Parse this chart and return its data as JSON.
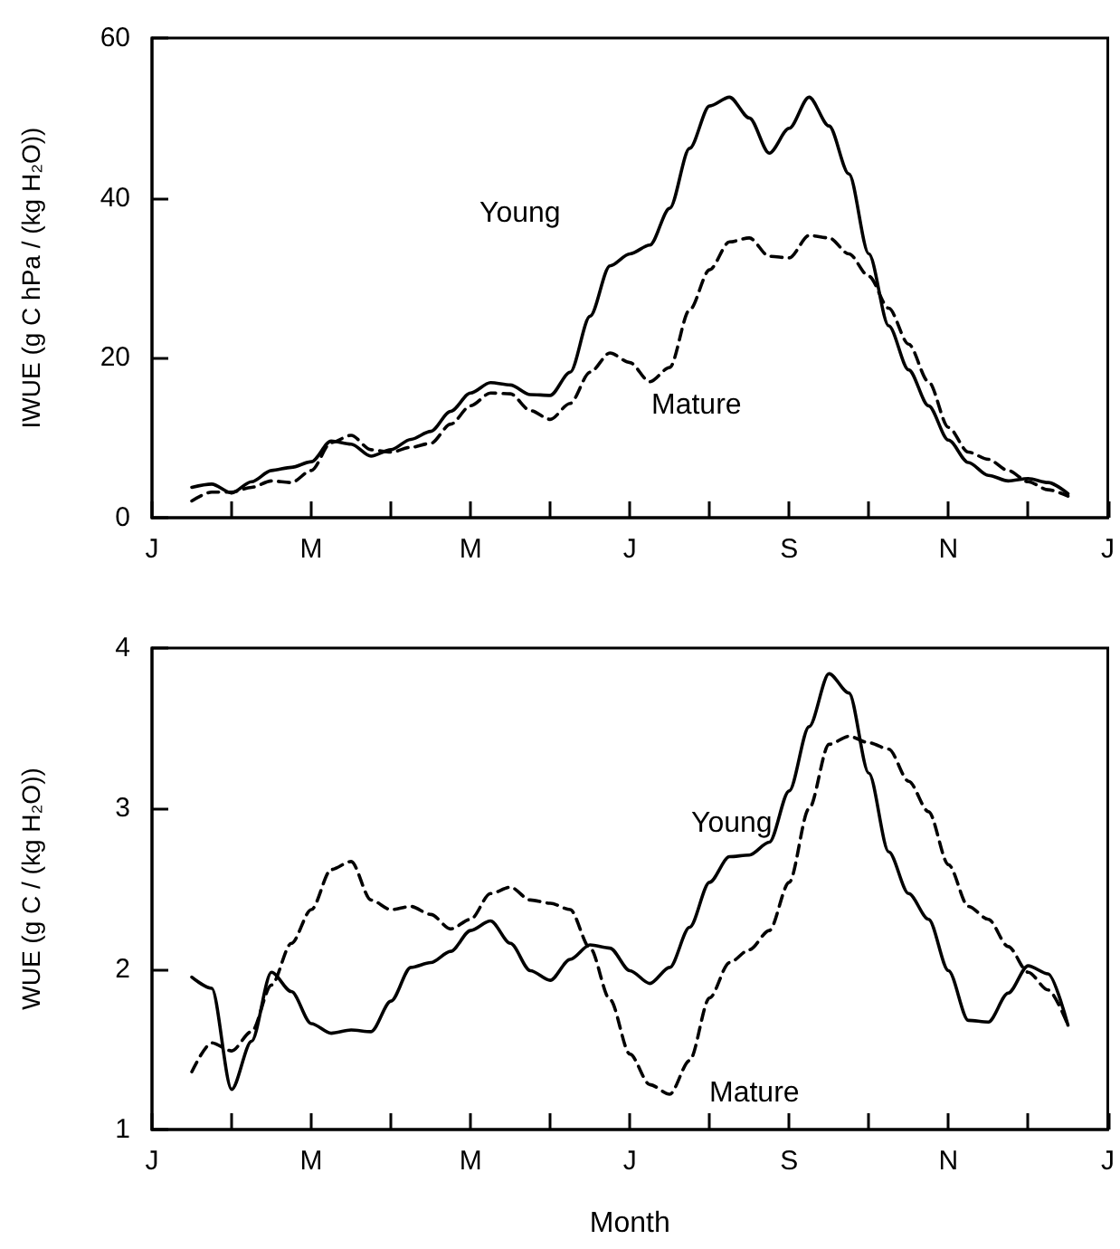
{
  "chart_data": [
    {
      "type": "line",
      "ylabel": "IWUE (g C hPa / (kg H₂O))",
      "ylim": [
        0,
        60
      ],
      "categories": [
        "J",
        null,
        null,
        null,
        null,
        null,
        null,
        null,
        "M",
        null,
        null,
        null,
        null,
        null,
        null,
        null,
        "M",
        null,
        null,
        null,
        null,
        null,
        null,
        null,
        "J",
        null,
        null,
        null,
        null,
        null,
        null,
        null,
        "S",
        null,
        null,
        null,
        null,
        null,
        null,
        null,
        "N",
        null,
        null,
        null,
        null,
        null,
        null,
        null,
        "J"
      ],
      "yticks": [
        0,
        20,
        40,
        60
      ],
      "grid": false,
      "legend": false,
      "marker": "none",
      "series": [
        {
          "name": "Young",
          "color": "#000000",
          "line_style": "solid",
          "values": [
            null,
            null,
            3.8,
            4.2,
            3.1,
            4.5,
            5.9,
            6.3,
            7.0,
            9.6,
            9.2,
            7.7,
            8.5,
            9.8,
            10.8,
            13.3,
            15.6,
            16.9,
            16.6,
            15.4,
            15.3,
            18.2,
            25.2,
            31.5,
            33.0,
            34.1,
            38.7,
            46.2,
            51.5,
            52.6,
            50.0,
            45.6,
            48.7,
            52.6,
            49.0,
            43.0,
            33.0,
            24.0,
            18.5,
            14.0,
            9.7,
            6.9,
            5.3,
            4.6,
            4.9,
            4.4,
            3.0,
            null,
            null
          ]
        },
        {
          "name": "Mature",
          "color": "#000000",
          "line_style": "dashed",
          "values": [
            null,
            null,
            2.1,
            3.2,
            3.2,
            3.8,
            4.6,
            4.4,
            5.9,
            9.4,
            10.3,
            8.5,
            8.2,
            8.8,
            9.3,
            11.7,
            14.0,
            15.6,
            15.5,
            13.4,
            12.3,
            14.3,
            18.2,
            20.6,
            19.4,
            17.0,
            18.8,
            26.0,
            31.0,
            34.5,
            35.0,
            32.7,
            32.5,
            35.3,
            35.0,
            33.0,
            30.2,
            26.2,
            21.7,
            17.0,
            11.3,
            8.2,
            7.3,
            5.9,
            4.5,
            3.5,
            2.7,
            null,
            null
          ]
        }
      ]
    },
    {
      "type": "line",
      "xlabel": "Month",
      "ylabel": "WUE (g C / (kg H₂O))",
      "ylim": [
        1,
        4
      ],
      "categories": [
        "J",
        null,
        null,
        null,
        null,
        null,
        null,
        null,
        "M",
        null,
        null,
        null,
        null,
        null,
        null,
        null,
        "M",
        null,
        null,
        null,
        null,
        null,
        null,
        null,
        "J",
        null,
        null,
        null,
        null,
        null,
        null,
        null,
        "S",
        null,
        null,
        null,
        null,
        null,
        null,
        null,
        "N",
        null,
        null,
        null,
        null,
        null,
        null,
        null,
        "J"
      ],
      "yticks": [
        1,
        2,
        3,
        4
      ],
      "grid": false,
      "legend": false,
      "marker": "none",
      "series": [
        {
          "name": "Young",
          "color": "#000000",
          "line_style": "solid",
          "values": [
            null,
            null,
            1.95,
            1.88,
            1.25,
            1.55,
            1.98,
            1.86,
            1.66,
            1.6,
            1.62,
            1.61,
            1.8,
            2.01,
            2.04,
            2.11,
            2.24,
            2.3,
            2.16,
            1.99,
            1.93,
            2.06,
            2.15,
            2.13,
            1.99,
            1.91,
            2.01,
            2.26,
            2.54,
            2.7,
            2.71,
            2.79,
            3.11,
            3.51,
            3.84,
            3.72,
            3.22,
            2.73,
            2.47,
            2.31,
            1.99,
            1.68,
            1.67,
            1.85,
            2.02,
            1.97,
            1.65,
            null,
            null
          ]
        },
        {
          "name": "Mature",
          "color": "#000000",
          "line_style": "dashed",
          "values": [
            null,
            null,
            1.36,
            1.54,
            1.49,
            1.61,
            1.9,
            2.16,
            2.37,
            2.62,
            2.67,
            2.43,
            2.37,
            2.39,
            2.34,
            2.25,
            2.31,
            2.47,
            2.51,
            2.43,
            2.41,
            2.37,
            2.13,
            1.81,
            1.47,
            1.28,
            1.22,
            1.43,
            1.82,
            2.04,
            2.12,
            2.24,
            2.54,
            3.0,
            3.4,
            3.45,
            3.41,
            3.37,
            3.17,
            2.98,
            2.65,
            2.39,
            2.31,
            2.14,
            1.98,
            1.87,
            1.65,
            null,
            null
          ]
        }
      ]
    }
  ]
}
